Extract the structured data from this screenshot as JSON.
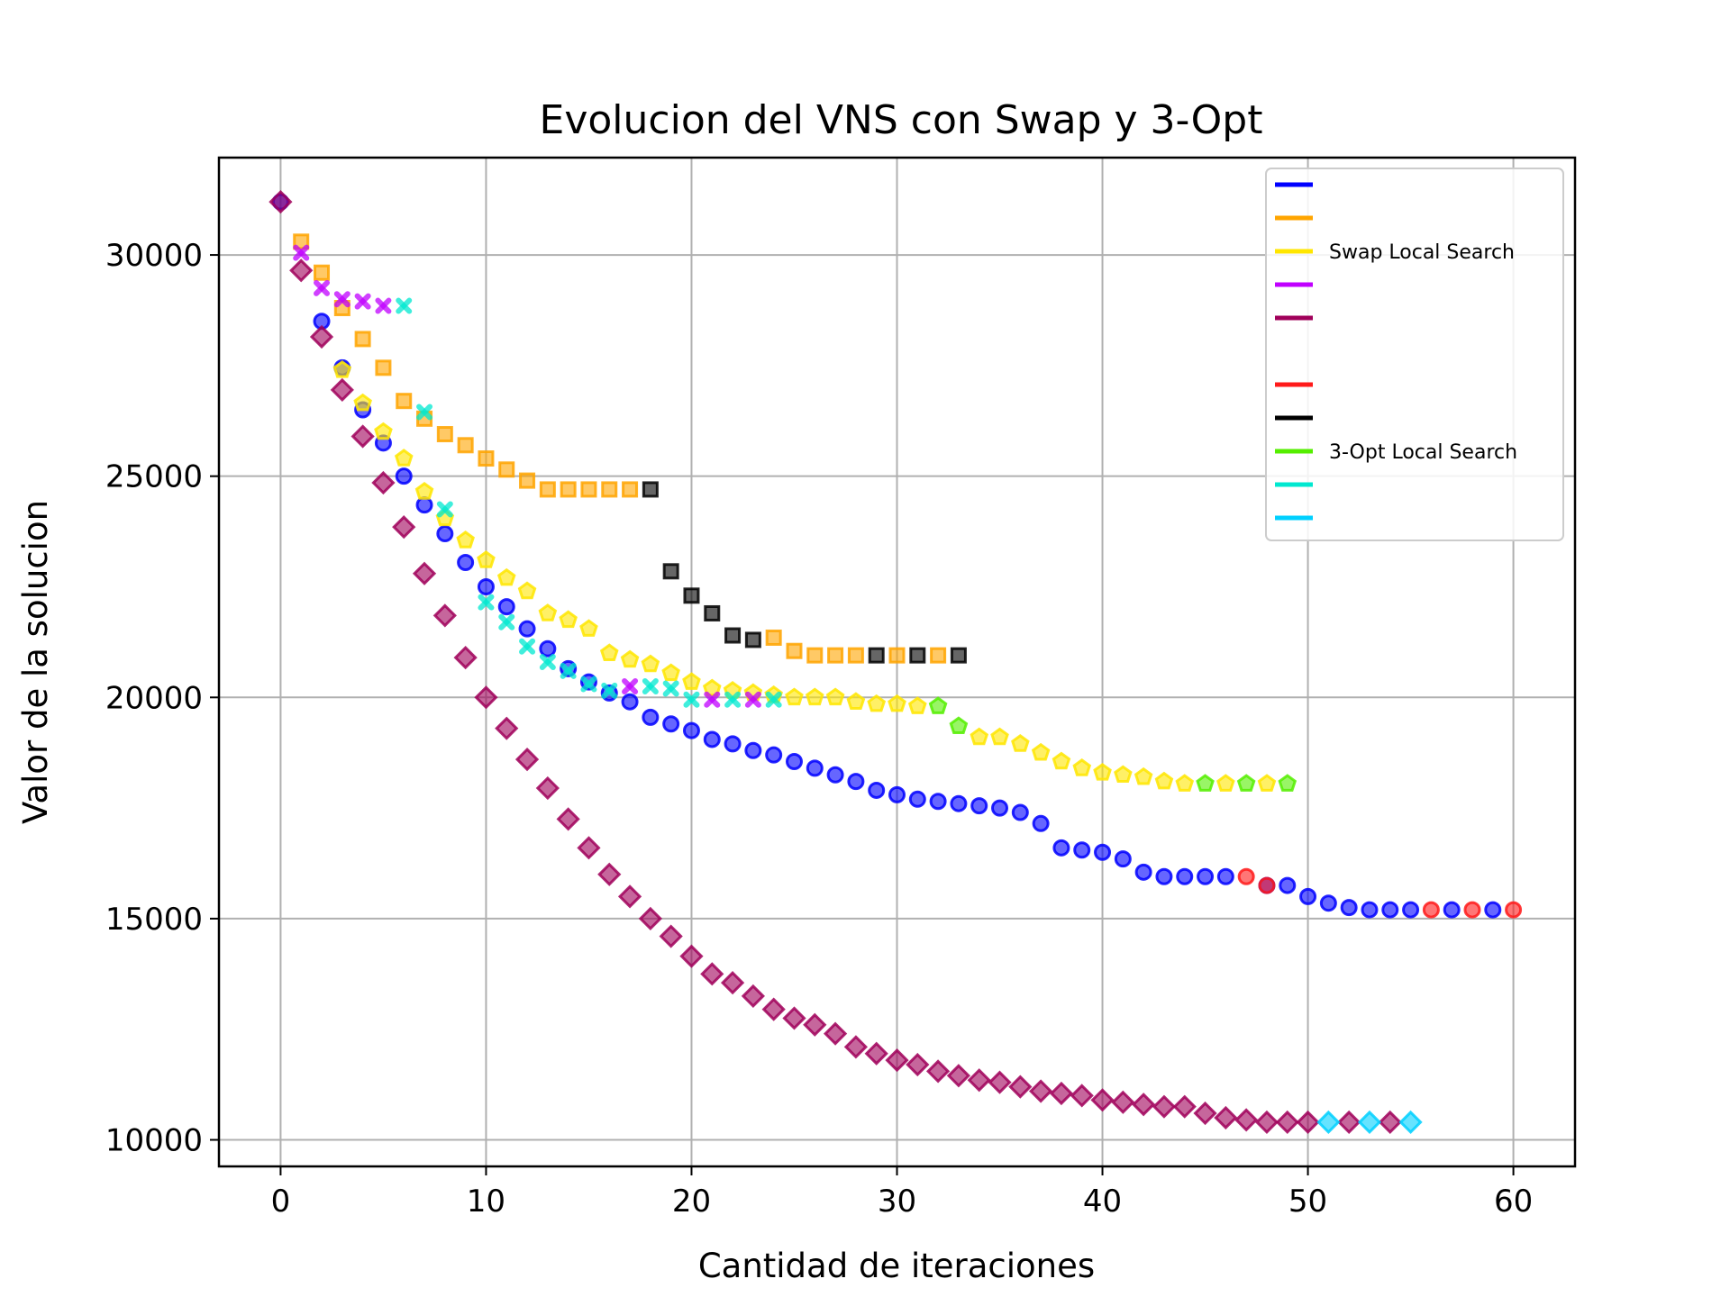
{
  "chart_data": {
    "type": "scatter",
    "title": "Evolucion del VNS con Swap y 3-Opt",
    "xlabel": "Cantidad de iteraciones",
    "ylabel": "Valor de la solucion",
    "xlim": [
      -3,
      63
    ],
    "ylim": [
      9400,
      32200
    ],
    "xticks": [
      0,
      10,
      20,
      30,
      40,
      50,
      60
    ],
    "yticks": [
      10000,
      15000,
      20000,
      25000,
      30000
    ],
    "grid": true,
    "legend_position": "upper right",
    "legend": [
      {
        "label": "",
        "color": "#0000ff"
      },
      {
        "label": "",
        "color": "#ffa500"
      },
      {
        "label": "Swap Local Search",
        "color": "#ffe600"
      },
      {
        "label": "",
        "color": "#c000ff"
      },
      {
        "label": "",
        "color": "#a0005a"
      },
      {
        "label": "",
        "color": ""
      },
      {
        "label": "",
        "color": "#ff1a1a"
      },
      {
        "label": "",
        "color": "#000000"
      },
      {
        "label": "3-Opt Local Search",
        "color": "#55ee00"
      },
      {
        "label": "",
        "color": "#00e8d0"
      },
      {
        "label": "",
        "color": "#00d0ff"
      }
    ],
    "series": [
      {
        "marker": "circle",
        "color": "#0000ff",
        "x": [
          0,
          2,
          3,
          4,
          5,
          6,
          7,
          8,
          9,
          10,
          11,
          12,
          13,
          14,
          15,
          16,
          17,
          18,
          19,
          20,
          21,
          22,
          23,
          24,
          25,
          26,
          27,
          28,
          29,
          30,
          31,
          32,
          33,
          34,
          35,
          36,
          37,
          38,
          39,
          40,
          41,
          42,
          43,
          44,
          45,
          46,
          48,
          49,
          50,
          51,
          52,
          53,
          54,
          55,
          57,
          59
        ],
        "y": [
          31200,
          28500,
          27450,
          26500,
          25750,
          25000,
          24350,
          23700,
          23050,
          22500,
          22050,
          21550,
          21100,
          20650,
          20350,
          20100,
          19900,
          19550,
          19400,
          19250,
          19050,
          18950,
          18800,
          18700,
          18550,
          18400,
          18250,
          18100,
          17900,
          17800,
          17700,
          17650,
          17600,
          17550,
          17500,
          17400,
          17150,
          16600,
          16550,
          16500,
          16350,
          16050,
          15950,
          15950,
          15950,
          15950,
          15750,
          15750,
          15500,
          15350,
          15250,
          15200,
          15200,
          15200,
          15200,
          15200
        ]
      },
      {
        "marker": "circle",
        "color": "#ff1a1a",
        "x": [
          47,
          48,
          56,
          58,
          60
        ],
        "y": [
          15950,
          15750,
          15200,
          15200,
          15200
        ]
      },
      {
        "marker": "square",
        "color": "#ffa500",
        "x": [
          1,
          2,
          3,
          4,
          5,
          6,
          7,
          8,
          9,
          10,
          11,
          12,
          13,
          14,
          15,
          16,
          17,
          24,
          25,
          26,
          27,
          28,
          30,
          32
        ],
        "y": [
          30300,
          29600,
          28800,
          28100,
          27450,
          26700,
          26300,
          25950,
          25700,
          25400,
          25150,
          24900,
          24700,
          24700,
          24700,
          24700,
          24700,
          21350,
          21050,
          20950,
          20950,
          20950,
          20950,
          20950
        ]
      },
      {
        "marker": "square",
        "color": "#000000",
        "x": [
          18,
          19,
          20,
          21,
          22,
          23,
          29,
          31,
          33
        ],
        "y": [
          24700,
          22850,
          22300,
          21900,
          21400,
          21300,
          20950,
          20950,
          20950
        ]
      },
      {
        "marker": "pentagon",
        "color": "#ffe600",
        "x": [
          3,
          4,
          5,
          6,
          7,
          8,
          9,
          10,
          11,
          12,
          13,
          14,
          15,
          16,
          17,
          18,
          19,
          20,
          21,
          22,
          23,
          24,
          25,
          26,
          27,
          28,
          29,
          30,
          31,
          34,
          35,
          36,
          37,
          38,
          39,
          40,
          41,
          42,
          43,
          44,
          46,
          48
        ],
        "y": [
          27400,
          26650,
          26000,
          25400,
          24650,
          24050,
          23550,
          23100,
          22700,
          22400,
          21900,
          21750,
          21550,
          21000,
          20850,
          20750,
          20550,
          20350,
          20200,
          20150,
          20100,
          20050,
          20000,
          20000,
          20000,
          19900,
          19850,
          19850,
          19800,
          19100,
          19100,
          18950,
          18750,
          18550,
          18400,
          18300,
          18250,
          18200,
          18100,
          18050,
          18050,
          18050
        ]
      },
      {
        "marker": "pentagon",
        "color": "#55ee00",
        "x": [
          32,
          33,
          45,
          47,
          49
        ],
        "y": [
          19800,
          19350,
          18050,
          18050,
          18050
        ]
      },
      {
        "marker": "x",
        "color": "#c000ff",
        "x": [
          1,
          2,
          3,
          4,
          5,
          17,
          21,
          23
        ],
        "y": [
          30050,
          29250,
          29000,
          28950,
          28850,
          20250,
          19950,
          19950
        ]
      },
      {
        "marker": "x",
        "color": "#00e8d0",
        "x": [
          6,
          7,
          8,
          10,
          11,
          12,
          13,
          14,
          15,
          16,
          18,
          19,
          20,
          22,
          24
        ],
        "y": [
          28850,
          26450,
          24250,
          22150,
          21700,
          21150,
          20800,
          20600,
          20300,
          20150,
          20250,
          20200,
          19950,
          19950,
          19950
        ]
      },
      {
        "marker": "diamond",
        "color": "#a0005a",
        "x": [
          0,
          1,
          2,
          3,
          4,
          5,
          6,
          7,
          8,
          9,
          10,
          11,
          12,
          13,
          14,
          15,
          16,
          17,
          18,
          19,
          20,
          21,
          22,
          23,
          24,
          25,
          26,
          27,
          28,
          29,
          30,
          31,
          32,
          33,
          34,
          35,
          36,
          37,
          38,
          39,
          40,
          41,
          42,
          43,
          44,
          45,
          46,
          47,
          48,
          49,
          50,
          52,
          54
        ],
        "y": [
          31200,
          29650,
          28150,
          26950,
          25900,
          24850,
          23850,
          22800,
          21850,
          20900,
          20000,
          19300,
          18600,
          17950,
          17250,
          16600,
          16000,
          15500,
          15000,
          14600,
          14150,
          13750,
          13550,
          13250,
          12950,
          12750,
          12600,
          12400,
          12100,
          11950,
          11800,
          11700,
          11550,
          11450,
          11350,
          11300,
          11200,
          11100,
          11050,
          11000,
          10900,
          10850,
          10800,
          10750,
          10750,
          10600,
          10500,
          10450,
          10400,
          10400,
          10400,
          10400,
          10400
        ]
      },
      {
        "marker": "diamond",
        "color": "#00d0ff",
        "x": [
          51,
          53,
          55
        ],
        "y": [
          10400,
          10400,
          10400
        ]
      }
    ]
  }
}
